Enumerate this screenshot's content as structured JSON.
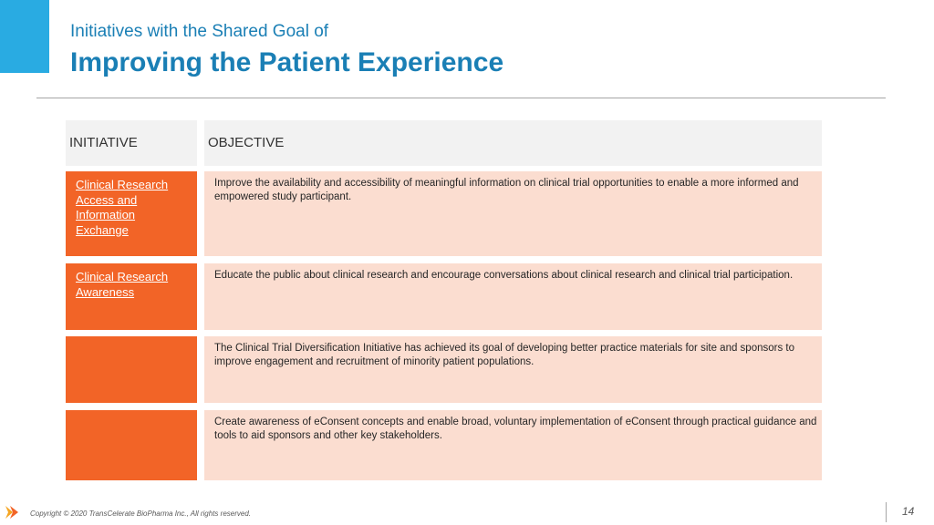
{
  "header": {
    "subtitle": "Initiatives with the Shared Goal of",
    "title": "Improving the Patient Experience"
  },
  "table": {
    "headers": {
      "initiative": "INITIATIVE",
      "objective": "OBJECTIVE"
    },
    "rows": [
      {
        "initiative": "Clinical Research Access and Information Exchange",
        "objective": "Improve the availability and accessibility of meaningful information on clinical trial opportunities to enable a more informed and empowered study participant."
      },
      {
        "initiative": "Clinical Research Awareness",
        "objective": "Educate the public about clinical research and encourage conversations about clinical research and clinical trial participation."
      },
      {
        "initiative": "",
        "objective": "The Clinical Trial Diversification Initiative has achieved its goal of developing better practice materials for site and sponsors to improve engagement and recruitment of minority patient populations."
      },
      {
        "initiative": "",
        "objective": "Create awareness of eConsent concepts and enable broad, voluntary implementation of eConsent through practical guidance and tools to aid sponsors and other key stakeholders."
      }
    ]
  },
  "footer": {
    "copyright": "Copyright © 2020 TransCelerate BioPharma Inc., All rights reserved.",
    "page_number": "14",
    "logo_icon": "transcelerate-logo-icon"
  },
  "colors": {
    "accent_blue": "#29abe2",
    "title_blue": "#1a7fb5",
    "initiative_orange": "#f26427",
    "objective_peach": "#fbddd0",
    "header_gray": "#f2f2f2"
  }
}
